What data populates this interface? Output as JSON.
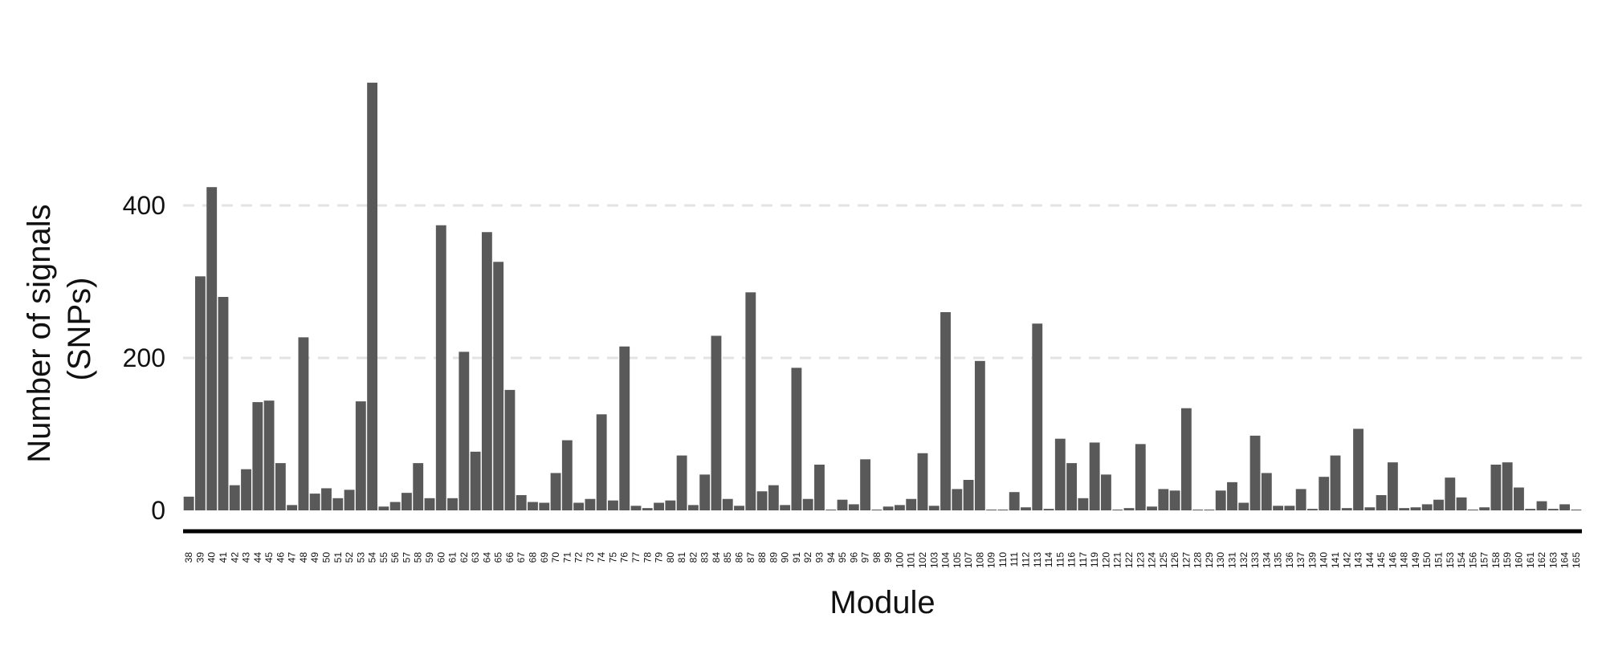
{
  "chart_data": {
    "type": "bar",
    "title": "",
    "xlabel": "Module",
    "ylabel_lines": [
      "Number of signals",
      "(SNPs)"
    ],
    "ylim": [
      0,
      560
    ],
    "yticks": [
      0,
      200,
      400
    ],
    "grid": "horizontal dashed",
    "colors": {
      "bar": "#595959",
      "grid": "#e3e3e3",
      "axis": "#000000"
    },
    "categories": [
      "38",
      "39",
      "40",
      "41",
      "42",
      "43",
      "44",
      "45",
      "46",
      "47",
      "48",
      "49",
      "50",
      "51",
      "52",
      "53",
      "54",
      "55",
      "56",
      "57",
      "58",
      "59",
      "60",
      "61",
      "62",
      "63",
      "64",
      "65",
      "66",
      "67",
      "68",
      "69",
      "70",
      "71",
      "72",
      "73",
      "74",
      "75",
      "76",
      "77",
      "78",
      "79",
      "80",
      "81",
      "82",
      "83",
      "84",
      "85",
      "86",
      "87",
      "88",
      "89",
      "90",
      "91",
      "92",
      "93",
      "94",
      "95",
      "96",
      "97",
      "98",
      "99",
      "100",
      "101",
      "102",
      "103",
      "104",
      "105",
      "107",
      "108",
      "109",
      "110",
      "111",
      "112",
      "113",
      "114",
      "115",
      "116",
      "117",
      "119",
      "120",
      "121",
      "122",
      "123",
      "124",
      "125",
      "126",
      "127",
      "128",
      "129",
      "130",
      "131",
      "132",
      "133",
      "134",
      "135",
      "136",
      "137",
      "139",
      "140",
      "141",
      "142",
      "143",
      "144",
      "145",
      "146",
      "148",
      "149",
      "150",
      "151",
      "153",
      "154",
      "156",
      "157",
      "158",
      "159",
      "160",
      "161",
      "162",
      "163",
      "164",
      "165"
    ],
    "values": [
      18,
      307,
      424,
      280,
      33,
      54,
      142,
      144,
      62,
      7,
      227,
      22,
      29,
      16,
      27,
      143,
      561,
      5,
      11,
      23,
      62,
      16,
      374,
      16,
      208,
      77,
      365,
      326,
      158,
      20,
      11,
      10,
      49,
      92,
      10,
      15,
      126,
      13,
      215,
      6,
      3,
      10,
      13,
      72,
      7,
      47,
      229,
      15,
      6,
      286,
      25,
      33,
      7,
      187,
      15,
      60,
      1,
      14,
      8,
      67,
      1,
      5,
      7,
      15,
      75,
      6,
      260,
      28,
      40,
      196,
      1,
      1,
      24,
      4,
      245,
      2,
      94,
      62,
      16,
      89,
      47,
      1,
      3,
      87,
      5,
      28,
      26,
      134,
      1,
      1,
      26,
      37,
      10,
      98,
      49,
      6,
      6,
      28,
      2,
      44,
      72,
      3,
      107,
      4,
      20,
      63,
      3,
      4,
      8,
      14,
      43,
      17,
      1,
      4,
      60,
      63,
      30,
      2,
      12,
      2,
      8,
      1
    ]
  }
}
